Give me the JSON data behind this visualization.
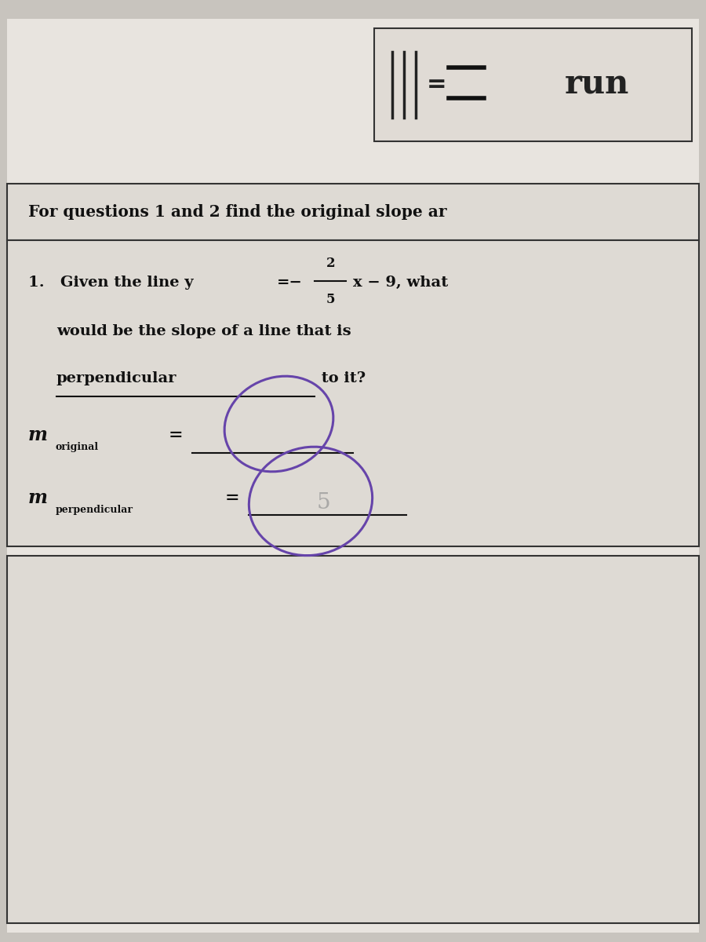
{
  "bg_color": "#c8c4be",
  "paper_color": "#e8e4df",
  "box_bg": "#dedad4",
  "title_header": "For questions 1 and 2 find the original slope ar",
  "question_line2": "would be the slope of a line that is",
  "question_line3": "perpendicular",
  "question_line3b": " to it?",
  "subscript_original": "original",
  "subscript_perp": "perpendicular",
  "run_text": "run",
  "circle_color": "#6644aa"
}
